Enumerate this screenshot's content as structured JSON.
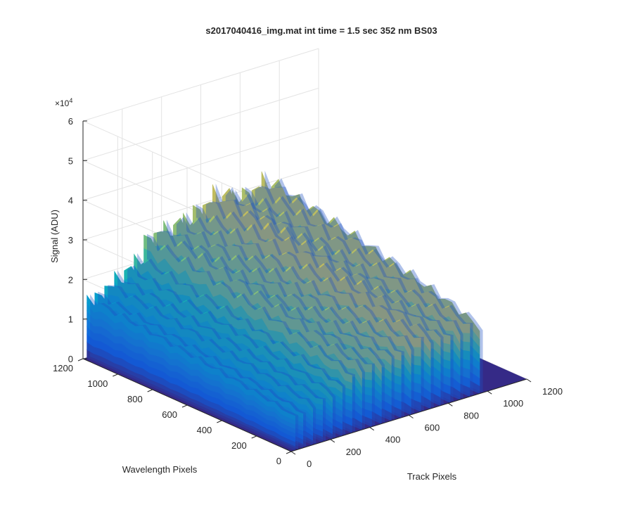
{
  "chart_data": {
    "type": "surface",
    "title": "s2017040416_img.mat int time = 1.5 sec  352 nm BS03",
    "xlabel": "Track Pixels",
    "ylabel": "Wavelength Pixels",
    "zlabel": "Signal (ADU)",
    "z_exponent_base": "×10",
    "z_exponent_power": "4",
    "xlim": [
      0,
      1200
    ],
    "ylim": [
      0,
      1200
    ],
    "zlim": [
      0,
      60000
    ],
    "x_ticks": [
      "200",
      "400",
      "600",
      "800",
      "1000",
      "1200"
    ],
    "x_tick_values": [
      200,
      400,
      600,
      800,
      1000,
      1200
    ],
    "x_zero_label": "0",
    "y_ticks": [
      "0",
      "200",
      "400",
      "600",
      "800",
      "1000",
      "1200"
    ],
    "y_tick_values": [
      0,
      200,
      400,
      600,
      800,
      1000,
      1200
    ],
    "z_ticks": [
      "0",
      "1",
      "2",
      "3",
      "4",
      "5",
      "6"
    ],
    "z_tick_values": [
      0,
      10000,
      20000,
      30000,
      40000,
      50000,
      60000
    ],
    "grid": true,
    "colormap": "parula",
    "track_peaks": [
      {
        "x": 20,
        "peak": 15000
      },
      {
        "x": 60,
        "peak": 15500
      },
      {
        "x": 110,
        "peak": 17500
      },
      {
        "x": 160,
        "peak": 18500
      },
      {
        "x": 210,
        "peak": 20000
      },
      {
        "x": 260,
        "peak": 22000
      },
      {
        "x": 310,
        "peak": 26000
      },
      {
        "x": 360,
        "peak": 27500
      },
      {
        "x": 410,
        "peak": 27000
      },
      {
        "x": 460,
        "peak": 28000
      },
      {
        "x": 510,
        "peak": 28500
      },
      {
        "x": 560,
        "peak": 29500
      },
      {
        "x": 610,
        "peak": 31000
      },
      {
        "x": 660,
        "peak": 32000
      },
      {
        "x": 710,
        "peak": 31500
      },
      {
        "x": 760,
        "peak": 30500
      },
      {
        "x": 810,
        "peak": 30000
      },
      {
        "x": 860,
        "peak": 31000
      },
      {
        "x": 910,
        "peak": 31500
      },
      {
        "x": 960,
        "peak": 30000
      }
    ],
    "track_y_range": [
      0,
      1200
    ]
  }
}
